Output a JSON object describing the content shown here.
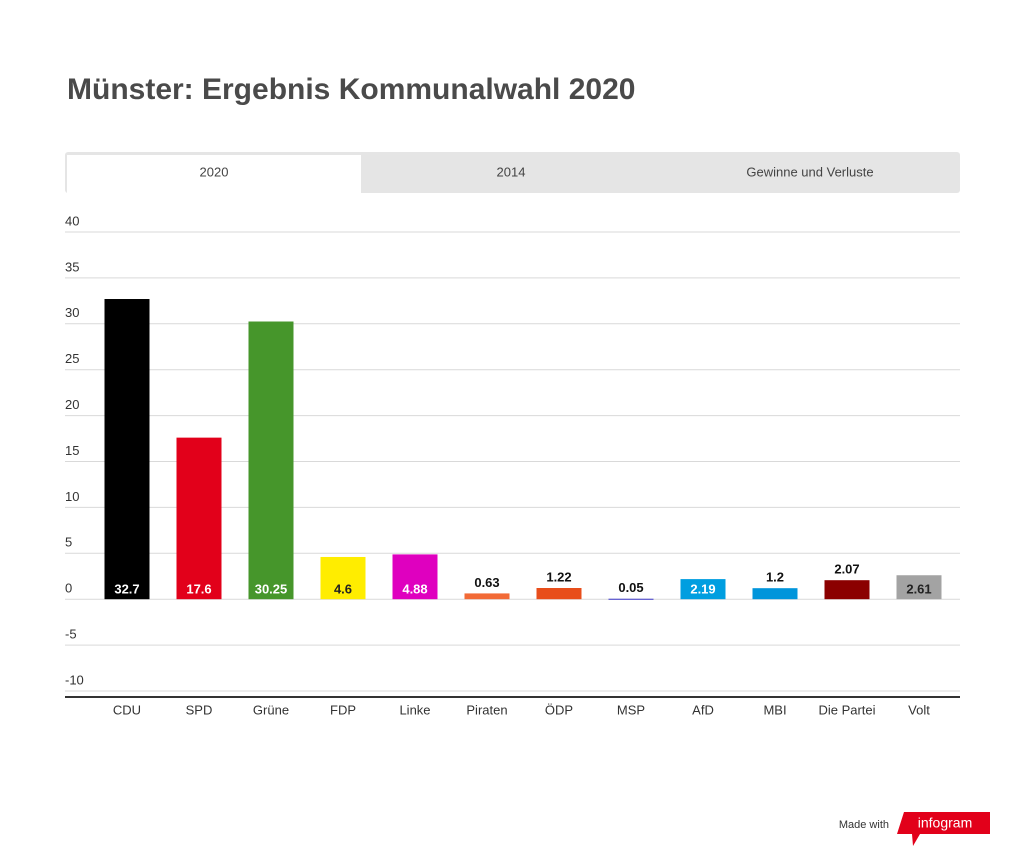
{
  "chart_data": {
    "type": "bar",
    "title": "Münster: Ergebnis Kommunalwahl 2020",
    "categories": [
      "CDU",
      "SPD",
      "Grüne",
      "FDP",
      "Linke",
      "Piraten",
      "ÖDP",
      "MSP",
      "AfD",
      "MBI",
      "Die Partei",
      "Volt"
    ],
    "values": [
      32.7,
      17.6,
      30.25,
      4.6,
      4.88,
      0.63,
      1.22,
      0.05,
      2.19,
      1.2,
      2.07,
      2.61
    ],
    "colors": [
      "#000000",
      "#e2001a",
      "#46962b",
      "#ffed00",
      "#df00bf",
      "#f26a36",
      "#e84e1b",
      "#3a34c8",
      "#009ee0",
      "#0095db",
      "#8b0000",
      "#a3a3a3"
    ],
    "ylim": [
      -10,
      40
    ],
    "yticks": [
      40,
      35,
      30,
      25,
      20,
      15,
      10,
      5,
      0,
      -5,
      -10
    ],
    "grid": true
  },
  "tabs": [
    "2020",
    "2014",
    "Gewinne und Verluste"
  ],
  "footer": {
    "made_with": "Made with",
    "brand": "infogram"
  }
}
